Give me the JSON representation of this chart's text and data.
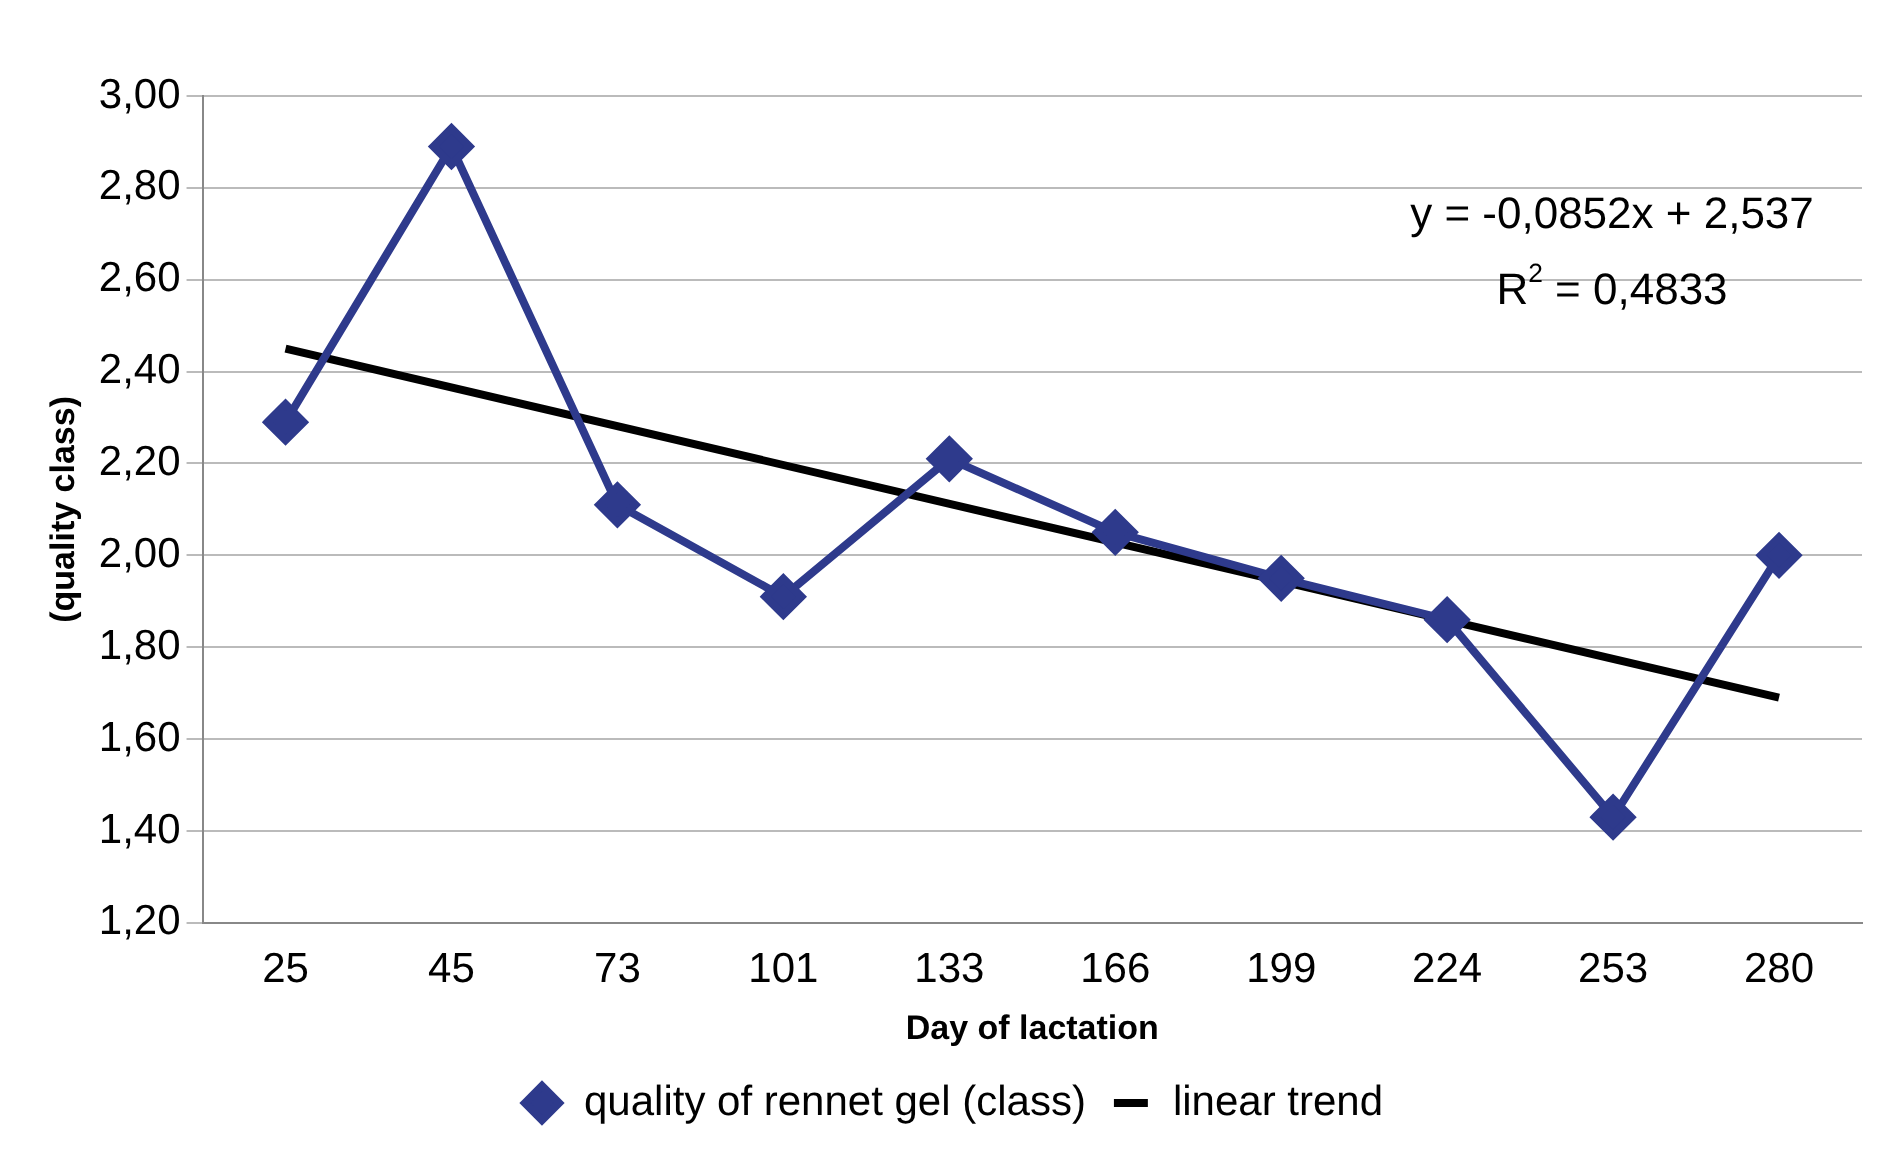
{
  "chart_data": {
    "type": "line",
    "xlabel": "Day of lactation",
    "ylabel": "(quality class)",
    "categories": [
      "25",
      "45",
      "73",
      "101",
      "133",
      "166",
      "199",
      "224",
      "253",
      "280"
    ],
    "series": [
      {
        "name": "quality of rennet gel (class)",
        "color": "#2e3a8c",
        "values": [
          2.29,
          2.89,
          2.11,
          1.91,
          2.21,
          2.05,
          1.95,
          1.86,
          1.43,
          2.0
        ],
        "marker": "diamond"
      },
      {
        "name": "linear trend",
        "color": "#000000",
        "values": [
          2.45,
          null,
          null,
          null,
          null,
          null,
          null,
          null,
          null,
          1.69
        ],
        "marker": "none"
      }
    ],
    "ylim": [
      1.2,
      3.0
    ],
    "yticks": [
      {
        "value": 1.2,
        "label": "1,20"
      },
      {
        "value": 1.4,
        "label": "1,40"
      },
      {
        "value": 1.6,
        "label": "1,60"
      },
      {
        "value": 1.8,
        "label": "1,80"
      },
      {
        "value": 2.0,
        "label": "2,00"
      },
      {
        "value": 2.2,
        "label": "2,20"
      },
      {
        "value": 2.4,
        "label": "2,40"
      },
      {
        "value": 2.6,
        "label": "2,60"
      },
      {
        "value": 2.8,
        "label": "2,80"
      },
      {
        "value": 3.0,
        "label": "3,00"
      }
    ],
    "grid": "y",
    "legend": "bottom",
    "line_style": "solid",
    "annotations": [
      "y = -0,0852x + 2,537",
      "R$^{2}$ = 0,4833"
    ]
  }
}
